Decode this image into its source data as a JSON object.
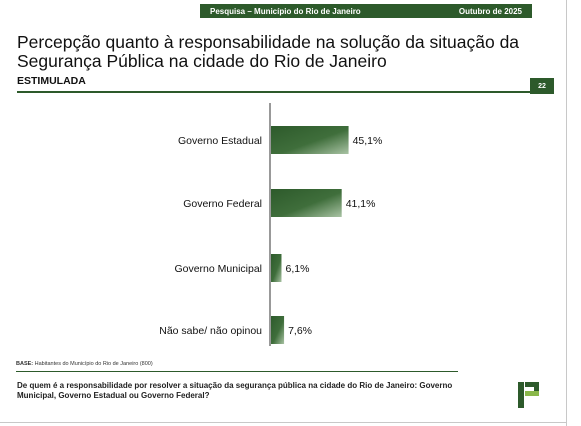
{
  "header": {
    "left": "Pesquisa – Município do Rio de Janeiro",
    "right": "Outubro de 2025"
  },
  "title": "Percepção quanto à responsabilidade na solução da situação da Segurança Pública na cidade do Rio de Janeiro",
  "subtitle": "ESTIMULADA",
  "page_number": "22",
  "base": {
    "label": "BASE:",
    "text": "Habitantes do Município do Rio de Janeiro (800)"
  },
  "question": "De quem é a responsabilidade por resolver a situação da segurança pública na cidade do Rio de Janeiro: Governo Municipal, Governo Estadual ou Governo Federal?",
  "colors": {
    "bar_dark": "#2d5a2b",
    "bar_light": "#a9c3a4",
    "logo_dark": "#2d5a2b",
    "logo_light": "#8ab84a"
  },
  "chart_data": {
    "type": "bar",
    "orientation": "horizontal",
    "categories": [
      "Governo Estadual",
      "Governo Federal",
      "Governo Municipal",
      "Não sabe/ não opinou"
    ],
    "values": [
      45.1,
      41.1,
      6.1,
      7.6
    ],
    "value_labels": [
      "45,1%",
      "41,1%",
      "6,1%",
      "7,6%"
    ],
    "xlim": [
      0,
      100
    ],
    "grid": false
  }
}
